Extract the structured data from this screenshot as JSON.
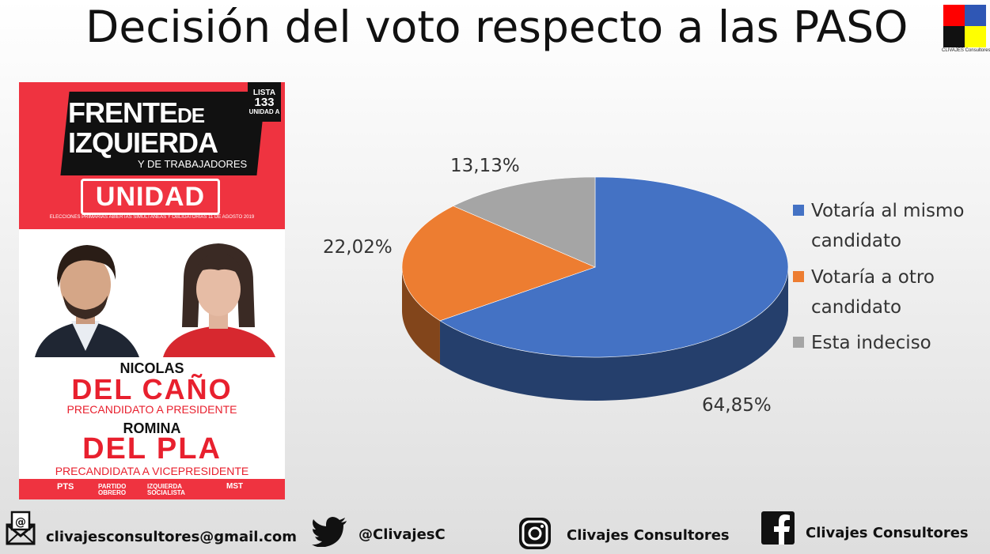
{
  "title": "Decisión del voto respecto a las PASO",
  "logo": {
    "text": "CLIVAJES Consultores",
    "colors": [
      "#ff0000",
      "#2f57b5",
      "#111111",
      "#ffff00"
    ]
  },
  "poster": {
    "lista": [
      "LISTA",
      "133",
      "UNIDAD A"
    ],
    "party_line1": "FRENTE",
    "party_line1_de": "DE",
    "party_line2": "IZQUIERDA",
    "party_line3": "Y DE TRABAJADORES",
    "unidad": "UNIDAD",
    "elections": "ELECCIONES PRIMARIAS ABIERTAS SIMULTÁNEAS Y OBLIGATORIAS 11 DE AGOSTO 2019",
    "candidate1_first": "NICOLAS",
    "candidate1_last": "DEL CAÑO",
    "candidate1_role": "PRECANDIDATO A PRESIDENTE",
    "candidate2_first": "ROMINA",
    "candidate2_last": "DEL PLA",
    "candidate2_role": "PRECANDIDATA A VICEPRESIDENTE",
    "parties": [
      "PTS",
      "PARTIDO OBRERO",
      "IZQUIERDA SOCIALISTA",
      "MST"
    ]
  },
  "chart_data": {
    "type": "pie",
    "title": "",
    "labels": [
      "Votaría al mismo candidato",
      "Votaría a otro candidato",
      "Esta indeciso"
    ],
    "values": [
      64.85,
      22.02,
      13.13
    ],
    "value_labels": [
      "64,85%",
      "22,02%",
      "13,13%"
    ],
    "colors": [
      "#4472c4",
      "#ed7d31",
      "#a5a5a5"
    ],
    "legend_position": "right",
    "style": "3d"
  },
  "legend": {
    "items": [
      {
        "lines": [
          "Votaría al mismo",
          "candidato"
        ],
        "color": "#4472c4"
      },
      {
        "lines": [
          "Votaría a otro",
          "candidato"
        ],
        "color": "#ed7d31"
      },
      {
        "lines": [
          "Esta indeciso"
        ],
        "color": "#a5a5a5"
      }
    ]
  },
  "footer": {
    "email": "clivajesconsultores@gmail.com",
    "twitter": "@ClivajesC",
    "instagram": "Clivajes Consultores",
    "facebook": "Clivajes Consultores"
  }
}
